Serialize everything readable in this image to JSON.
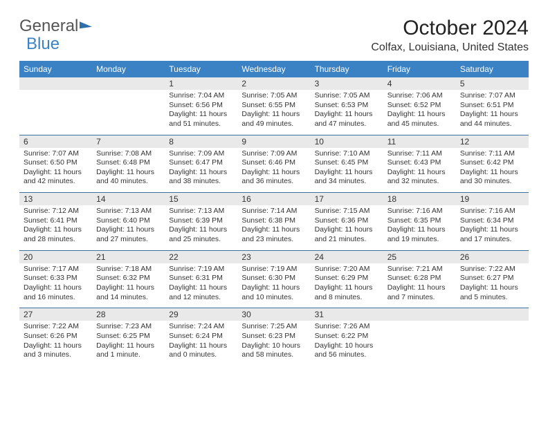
{
  "logo": {
    "part1": "General",
    "part2": "Blue"
  },
  "title": "October 2024",
  "location": "Colfax, Louisiana, United States",
  "colors": {
    "header_bg": "#3b82c4",
    "row_divider": "#3b6fa0",
    "daynum_bg": "#e9e9e9",
    "text": "#333333",
    "page_bg": "#ffffff"
  },
  "dow": [
    "Sunday",
    "Monday",
    "Tuesday",
    "Wednesday",
    "Thursday",
    "Friday",
    "Saturday"
  ],
  "weeks": [
    {
      "nums": [
        "",
        "",
        "1",
        "2",
        "3",
        "4",
        "5"
      ],
      "cells": [
        {},
        {},
        {
          "sunrise": "Sunrise: 7:04 AM",
          "sunset": "Sunset: 6:56 PM",
          "day1": "Daylight: 11 hours",
          "day2": "and 51 minutes."
        },
        {
          "sunrise": "Sunrise: 7:05 AM",
          "sunset": "Sunset: 6:55 PM",
          "day1": "Daylight: 11 hours",
          "day2": "and 49 minutes."
        },
        {
          "sunrise": "Sunrise: 7:05 AM",
          "sunset": "Sunset: 6:53 PM",
          "day1": "Daylight: 11 hours",
          "day2": "and 47 minutes."
        },
        {
          "sunrise": "Sunrise: 7:06 AM",
          "sunset": "Sunset: 6:52 PM",
          "day1": "Daylight: 11 hours",
          "day2": "and 45 minutes."
        },
        {
          "sunrise": "Sunrise: 7:07 AM",
          "sunset": "Sunset: 6:51 PM",
          "day1": "Daylight: 11 hours",
          "day2": "and 44 minutes."
        }
      ]
    },
    {
      "nums": [
        "6",
        "7",
        "8",
        "9",
        "10",
        "11",
        "12"
      ],
      "cells": [
        {
          "sunrise": "Sunrise: 7:07 AM",
          "sunset": "Sunset: 6:50 PM",
          "day1": "Daylight: 11 hours",
          "day2": "and 42 minutes."
        },
        {
          "sunrise": "Sunrise: 7:08 AM",
          "sunset": "Sunset: 6:48 PM",
          "day1": "Daylight: 11 hours",
          "day2": "and 40 minutes."
        },
        {
          "sunrise": "Sunrise: 7:09 AM",
          "sunset": "Sunset: 6:47 PM",
          "day1": "Daylight: 11 hours",
          "day2": "and 38 minutes."
        },
        {
          "sunrise": "Sunrise: 7:09 AM",
          "sunset": "Sunset: 6:46 PM",
          "day1": "Daylight: 11 hours",
          "day2": "and 36 minutes."
        },
        {
          "sunrise": "Sunrise: 7:10 AM",
          "sunset": "Sunset: 6:45 PM",
          "day1": "Daylight: 11 hours",
          "day2": "and 34 minutes."
        },
        {
          "sunrise": "Sunrise: 7:11 AM",
          "sunset": "Sunset: 6:43 PM",
          "day1": "Daylight: 11 hours",
          "day2": "and 32 minutes."
        },
        {
          "sunrise": "Sunrise: 7:11 AM",
          "sunset": "Sunset: 6:42 PM",
          "day1": "Daylight: 11 hours",
          "day2": "and 30 minutes."
        }
      ]
    },
    {
      "nums": [
        "13",
        "14",
        "15",
        "16",
        "17",
        "18",
        "19"
      ],
      "cells": [
        {
          "sunrise": "Sunrise: 7:12 AM",
          "sunset": "Sunset: 6:41 PM",
          "day1": "Daylight: 11 hours",
          "day2": "and 28 minutes."
        },
        {
          "sunrise": "Sunrise: 7:13 AM",
          "sunset": "Sunset: 6:40 PM",
          "day1": "Daylight: 11 hours",
          "day2": "and 27 minutes."
        },
        {
          "sunrise": "Sunrise: 7:13 AM",
          "sunset": "Sunset: 6:39 PM",
          "day1": "Daylight: 11 hours",
          "day2": "and 25 minutes."
        },
        {
          "sunrise": "Sunrise: 7:14 AM",
          "sunset": "Sunset: 6:38 PM",
          "day1": "Daylight: 11 hours",
          "day2": "and 23 minutes."
        },
        {
          "sunrise": "Sunrise: 7:15 AM",
          "sunset": "Sunset: 6:36 PM",
          "day1": "Daylight: 11 hours",
          "day2": "and 21 minutes."
        },
        {
          "sunrise": "Sunrise: 7:16 AM",
          "sunset": "Sunset: 6:35 PM",
          "day1": "Daylight: 11 hours",
          "day2": "and 19 minutes."
        },
        {
          "sunrise": "Sunrise: 7:16 AM",
          "sunset": "Sunset: 6:34 PM",
          "day1": "Daylight: 11 hours",
          "day2": "and 17 minutes."
        }
      ]
    },
    {
      "nums": [
        "20",
        "21",
        "22",
        "23",
        "24",
        "25",
        "26"
      ],
      "cells": [
        {
          "sunrise": "Sunrise: 7:17 AM",
          "sunset": "Sunset: 6:33 PM",
          "day1": "Daylight: 11 hours",
          "day2": "and 16 minutes."
        },
        {
          "sunrise": "Sunrise: 7:18 AM",
          "sunset": "Sunset: 6:32 PM",
          "day1": "Daylight: 11 hours",
          "day2": "and 14 minutes."
        },
        {
          "sunrise": "Sunrise: 7:19 AM",
          "sunset": "Sunset: 6:31 PM",
          "day1": "Daylight: 11 hours",
          "day2": "and 12 minutes."
        },
        {
          "sunrise": "Sunrise: 7:19 AM",
          "sunset": "Sunset: 6:30 PM",
          "day1": "Daylight: 11 hours",
          "day2": "and 10 minutes."
        },
        {
          "sunrise": "Sunrise: 7:20 AM",
          "sunset": "Sunset: 6:29 PM",
          "day1": "Daylight: 11 hours",
          "day2": "and 8 minutes."
        },
        {
          "sunrise": "Sunrise: 7:21 AM",
          "sunset": "Sunset: 6:28 PM",
          "day1": "Daylight: 11 hours",
          "day2": "and 7 minutes."
        },
        {
          "sunrise": "Sunrise: 7:22 AM",
          "sunset": "Sunset: 6:27 PM",
          "day1": "Daylight: 11 hours",
          "day2": "and 5 minutes."
        }
      ]
    },
    {
      "nums": [
        "27",
        "28",
        "29",
        "30",
        "31",
        "",
        ""
      ],
      "cells": [
        {
          "sunrise": "Sunrise: 7:22 AM",
          "sunset": "Sunset: 6:26 PM",
          "day1": "Daylight: 11 hours",
          "day2": "and 3 minutes."
        },
        {
          "sunrise": "Sunrise: 7:23 AM",
          "sunset": "Sunset: 6:25 PM",
          "day1": "Daylight: 11 hours",
          "day2": "and 1 minute."
        },
        {
          "sunrise": "Sunrise: 7:24 AM",
          "sunset": "Sunset: 6:24 PM",
          "day1": "Daylight: 11 hours",
          "day2": "and 0 minutes."
        },
        {
          "sunrise": "Sunrise: 7:25 AM",
          "sunset": "Sunset: 6:23 PM",
          "day1": "Daylight: 10 hours",
          "day2": "and 58 minutes."
        },
        {
          "sunrise": "Sunrise: 7:26 AM",
          "sunset": "Sunset: 6:22 PM",
          "day1": "Daylight: 10 hours",
          "day2": "and 56 minutes."
        },
        {},
        {}
      ]
    }
  ]
}
